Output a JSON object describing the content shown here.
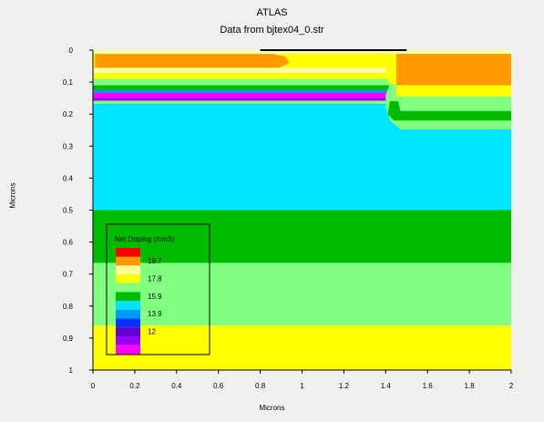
{
  "app_title": "ATLAS",
  "subtitle": "Data from bjtex04_0.str",
  "colors": {
    "red": "#ff0000",
    "orange": "#ff9900",
    "yellow": "#ffff00",
    "light_yellow": "#ffff99",
    "light_green": "#80ff80",
    "green": "#00bb00",
    "cyan": "#00e5ff",
    "light_blue": "#0099ff",
    "blue": "#0033ff",
    "purple": "#6600cc",
    "violet": "#9900ff",
    "magenta": "#ff00ff",
    "contact": "#000000"
  },
  "chart_data": {
    "type": "heatmap",
    "title": "",
    "xlabel": "Microns",
    "ylabel": "Microns",
    "xlim": [
      0,
      2
    ],
    "ylim": [
      0,
      1
    ],
    "y_inverted": true,
    "x_ticks": [
      "0",
      "0.2",
      "0.4",
      "0.6",
      "0.8",
      "1",
      "1.2",
      "1.4",
      "1.6",
      "1.8",
      "2"
    ],
    "y_ticks": [
      "0",
      "0.1",
      "0.2",
      "0.3",
      "0.4",
      "0.5",
      "0.6",
      "0.7",
      "0.8",
      "0.9",
      "1"
    ],
    "legend": {
      "title": "Net Doping (/cm3)",
      "placement": "bottom-left",
      "swatches": [
        "red",
        "orange",
        "light_yellow",
        "yellow",
        "light_green",
        "green",
        "cyan",
        "light_blue",
        "blue",
        "purple",
        "violet",
        "magenta"
      ],
      "labels": [
        "19.7",
        "17.8",
        "15.9",
        "13.9",
        "12"
      ]
    }
  }
}
